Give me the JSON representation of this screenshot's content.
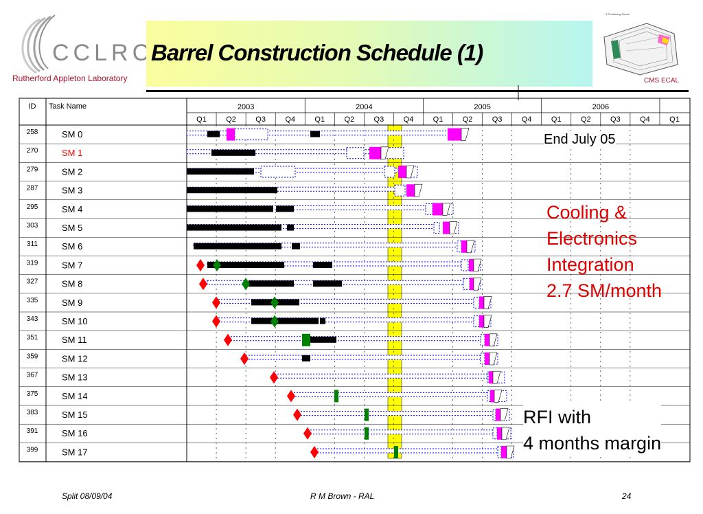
{
  "header": {
    "title": "Barrel Construction Schedule (1)",
    "logo_text": "CCLRC",
    "lab_name": "Rutherford Appleton Laboratory",
    "cms_label": "CMS ECAL",
    "cms_image_caption": "4 Containing Zones"
  },
  "gantt": {
    "columns": {
      "id": "ID",
      "task": "Task Name"
    },
    "years": [
      "2003",
      "2004",
      "2005",
      "2006"
    ],
    "quarters": [
      "Q1",
      "Q2",
      "Q3",
      "Q4",
      "Q1",
      "Q2",
      "Q3",
      "Q4",
      "Q1",
      "Q2",
      "Q3",
      "Q4",
      "Q1",
      "Q2",
      "Q3",
      "Q4",
      "Q1"
    ],
    "rows": [
      {
        "id": "258",
        "name": "SM 0"
      },
      {
        "id": "270",
        "name": "SM 1",
        "highlight": true
      },
      {
        "id": "279",
        "name": "SM 2"
      },
      {
        "id": "287",
        "name": "SM 3"
      },
      {
        "id": "295",
        "name": "SM 4"
      },
      {
        "id": "303",
        "name": "SM 5"
      },
      {
        "id": "311",
        "name": "SM 6"
      },
      {
        "id": "319",
        "name": "SM 7"
      },
      {
        "id": "327",
        "name": "SM 8"
      },
      {
        "id": "335",
        "name": "SM 9"
      },
      {
        "id": "343",
        "name": "SM 10"
      },
      {
        "id": "351",
        "name": "SM 11"
      },
      {
        "id": "359",
        "name": "SM 12"
      },
      {
        "id": "367",
        "name": "SM 13"
      },
      {
        "id": "375",
        "name": "SM 14"
      },
      {
        "id": "383",
        "name": "SM 15"
      },
      {
        "id": "391",
        "name": "SM 16"
      },
      {
        "id": "399",
        "name": "SM 17"
      }
    ],
    "colors": {
      "black_bar": "#000000",
      "magenta": "#ff00ff",
      "diamond_red": "#ff0000",
      "diamond_green": "#008000",
      "highlight_col": "#ffff00",
      "task_red": "#ff0000",
      "bar_blue": "#0000ff"
    }
  },
  "annotations": {
    "end_july": "End July 05",
    "cooling": [
      "Cooling &",
      "Electronics",
      "Integration",
      "2.7 SM/month"
    ],
    "rfi": [
      "RFI with",
      "4 months margin"
    ]
  },
  "footer": {
    "left": "Split 08/09/04",
    "center": "R M Brown - RAL",
    "right": "24"
  }
}
